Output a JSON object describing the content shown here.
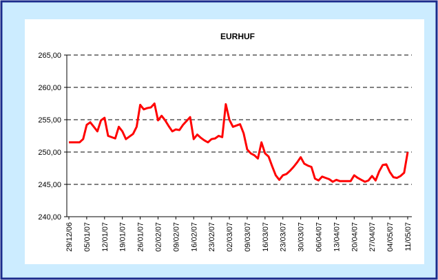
{
  "chart_data": {
    "type": "line",
    "title": "EURHUF",
    "categories": [
      "29/12/06",
      null,
      null,
      null,
      null,
      "05/01/07",
      null,
      null,
      null,
      null,
      "12/01/07",
      null,
      null,
      null,
      null,
      "19/01/07",
      null,
      null,
      null,
      null,
      "26/01/07",
      null,
      null,
      null,
      null,
      "02/02/07",
      null,
      null,
      null,
      null,
      "09/02/07",
      null,
      null,
      null,
      null,
      "16/02/07",
      null,
      null,
      null,
      null,
      "23/02/07",
      null,
      null,
      null,
      null,
      "02/03/07",
      null,
      null,
      null,
      null,
      "09/03/07",
      null,
      null,
      null,
      null,
      "16/03/07",
      null,
      null,
      null,
      null,
      "23/03/07",
      null,
      null,
      null,
      null,
      "30/03/07",
      null,
      null,
      null,
      null,
      "06/04/07",
      null,
      null,
      null,
      null,
      "13/04/07",
      null,
      null,
      null,
      null,
      "20/04/07",
      null,
      null,
      null,
      null,
      "27/04/07",
      null,
      null,
      null,
      null,
      "04/05/07",
      null,
      null,
      null,
      null,
      "11/05/07"
    ],
    "series": [
      {
        "name": "EURHUF",
        "color": "#ff0000",
        "values": [
          251.5,
          251.5,
          251.5,
          251.5,
          252.0,
          254.2,
          254.6,
          253.9,
          253.2,
          254.9,
          255.3,
          252.5,
          252.3,
          252.1,
          253.9,
          253.2,
          252.0,
          252.4,
          252.8,
          253.9,
          257.3,
          256.6,
          256.8,
          256.9,
          257.5,
          254.9,
          255.6,
          254.9,
          254.0,
          253.2,
          253.5,
          253.4,
          254.2,
          254.8,
          255.4,
          252.0,
          252.7,
          252.2,
          251.8,
          251.5,
          252.0,
          252.1,
          252.5,
          252.3,
          257.4,
          255.0,
          253.9,
          254.1,
          254.3,
          252.9,
          250.4,
          249.8,
          249.5,
          249.0,
          251.5,
          249.8,
          249.3,
          247.8,
          246.4,
          245.7,
          246.4,
          246.6,
          247.1,
          247.7,
          248.4,
          249.2,
          248.2,
          247.9,
          247.7,
          245.9,
          245.6,
          246.2,
          246.0,
          245.8,
          245.4,
          245.7,
          245.5,
          245.5,
          245.5,
          245.5,
          246.4,
          246.0,
          245.7,
          245.4,
          245.6,
          246.3,
          245.6,
          247.0,
          248.0,
          248.1,
          246.9,
          246.1,
          246.0,
          246.3,
          246.8,
          250.0
        ]
      }
    ],
    "ylim": [
      240,
      265
    ],
    "yticks": [
      {
        "value": 240,
        "label": "240,00"
      },
      {
        "value": 245,
        "label": "245,00"
      },
      {
        "value": 250,
        "label": "250,00"
      },
      {
        "value": 255,
        "label": "255,00"
      },
      {
        "value": 260,
        "label": "260,00"
      },
      {
        "value": 265,
        "label": "265,00"
      }
    ],
    "grid": true
  }
}
